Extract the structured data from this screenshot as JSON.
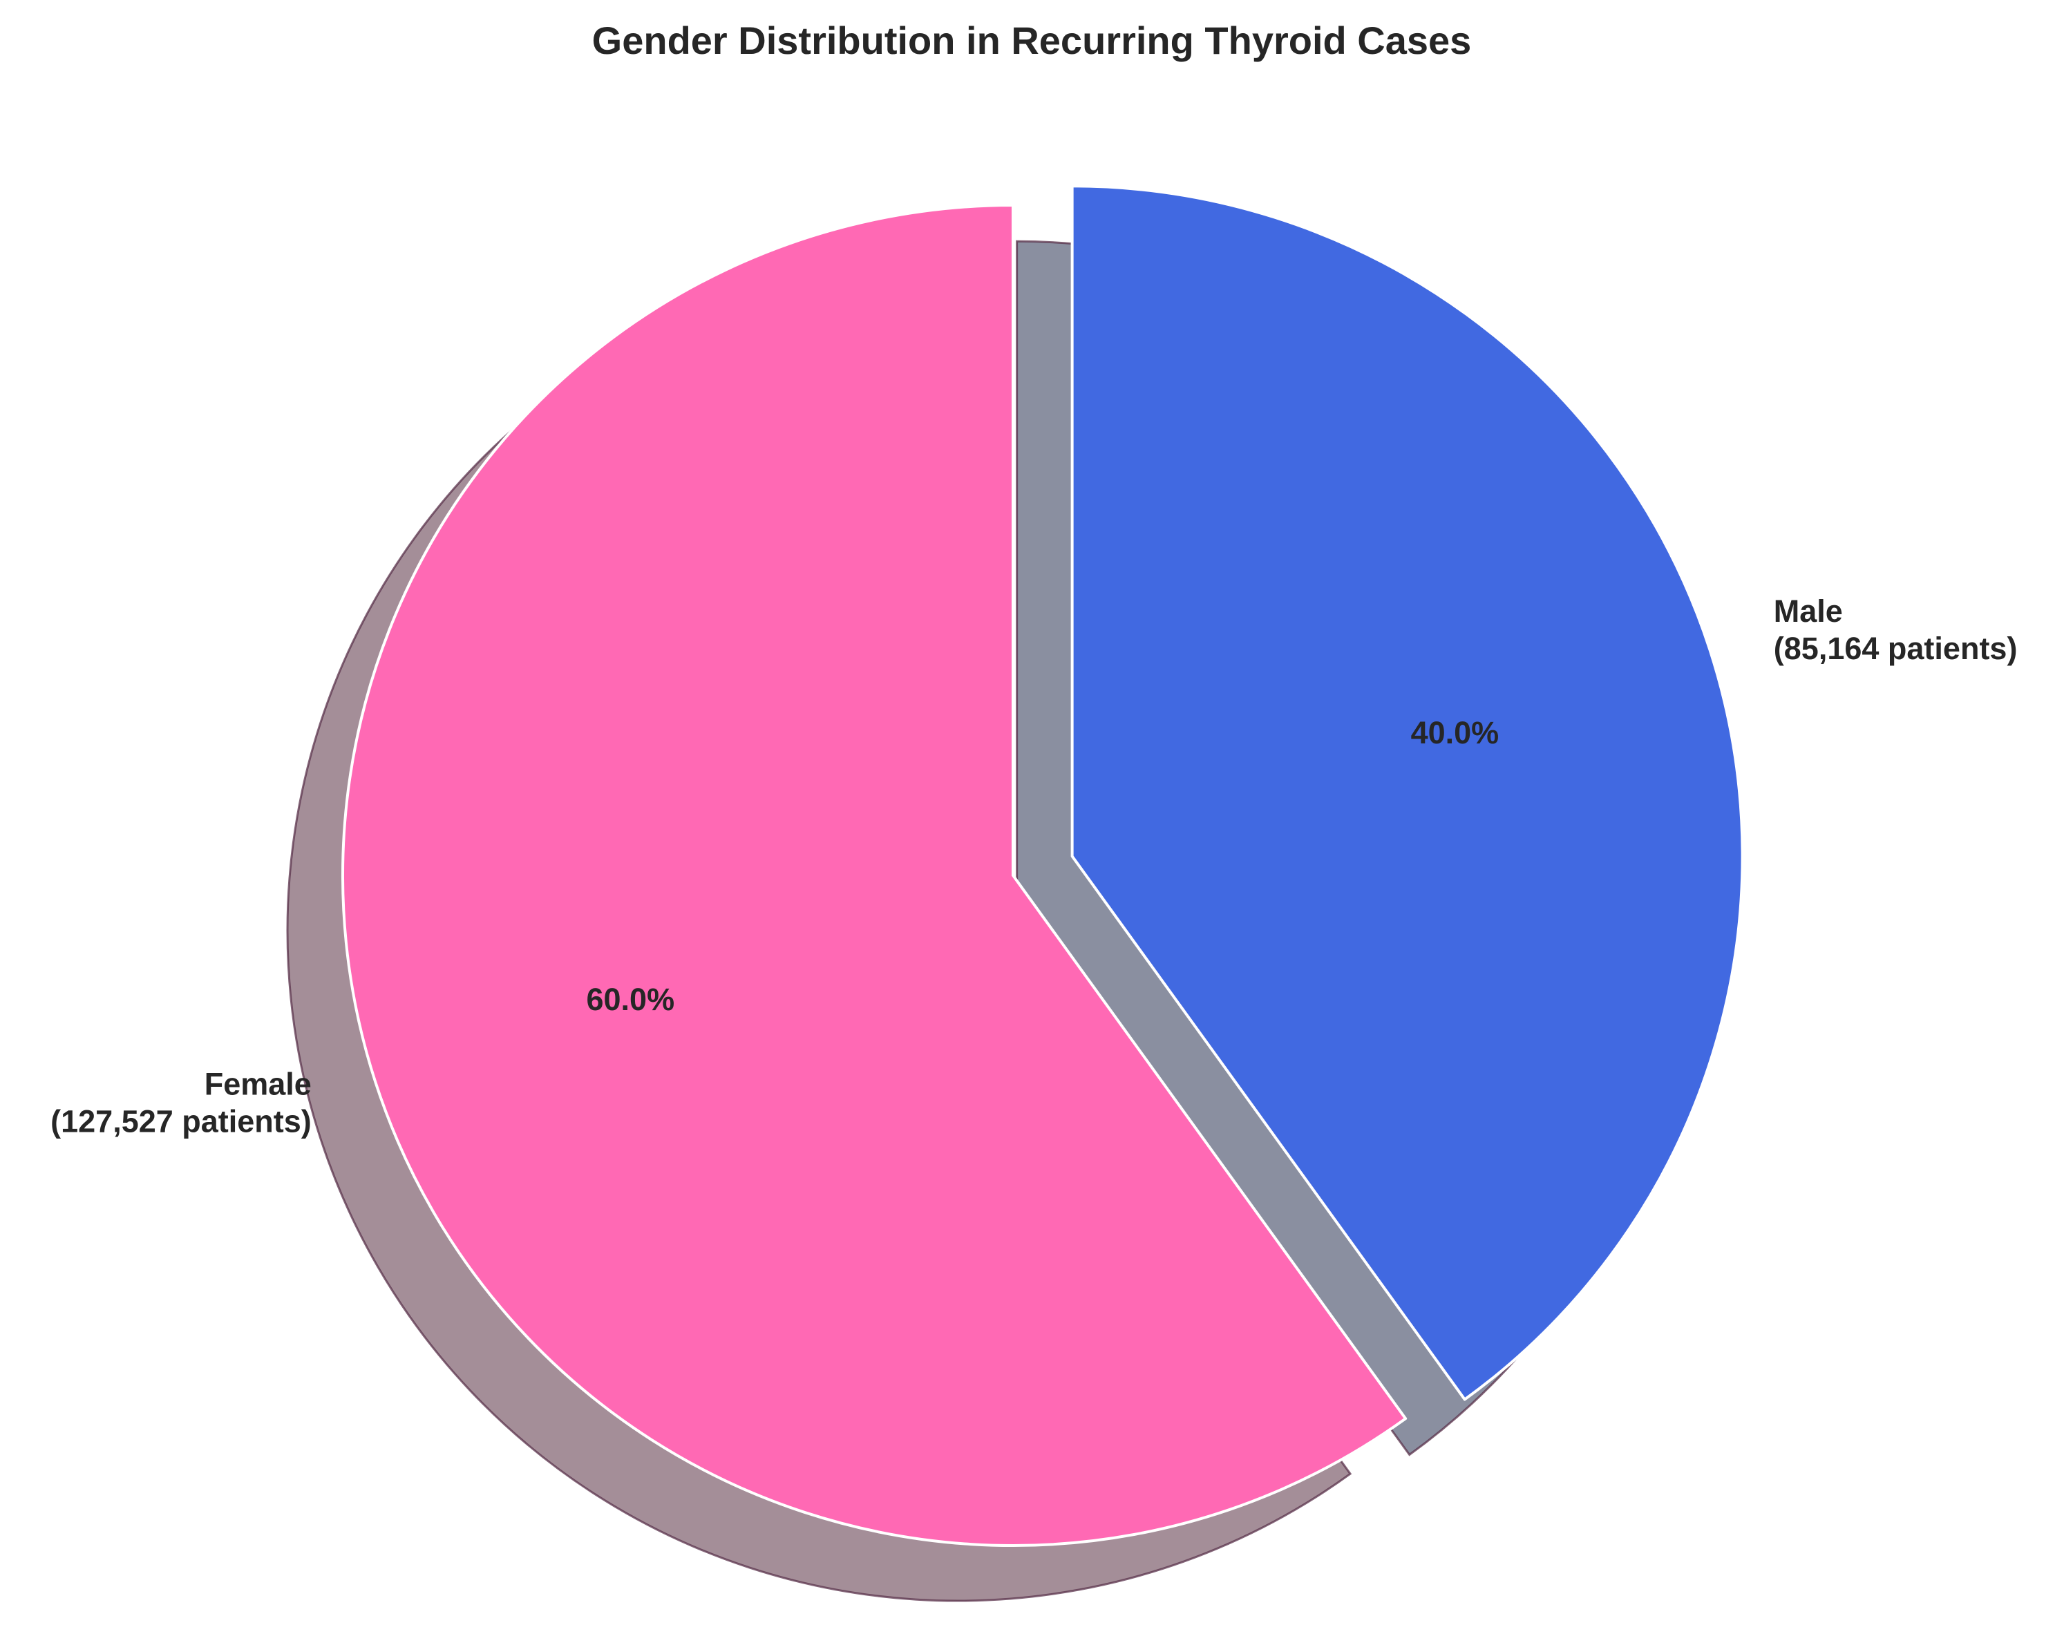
{
  "chart_data": {
    "type": "pie",
    "title": "Gender Distribution in Recurring Thyroid Cases",
    "slices": [
      {
        "label": "Female",
        "count_label": "(127,527 patients)",
        "value": 127527,
        "percent_label": "60.0%",
        "color": "#ff69b4",
        "shadow_color": "#a48e98",
        "exploded": false
      },
      {
        "label": "Male",
        "count_label": "(85,164 patients)",
        "value": 85164,
        "percent_label": "40.0%",
        "color": "#4169e1",
        "shadow_color": "#8a8fa0",
        "exploded": true
      }
    ],
    "start_angle_deg": 90,
    "direction": "counterclockwise",
    "shadow": true,
    "legend": "none"
  }
}
